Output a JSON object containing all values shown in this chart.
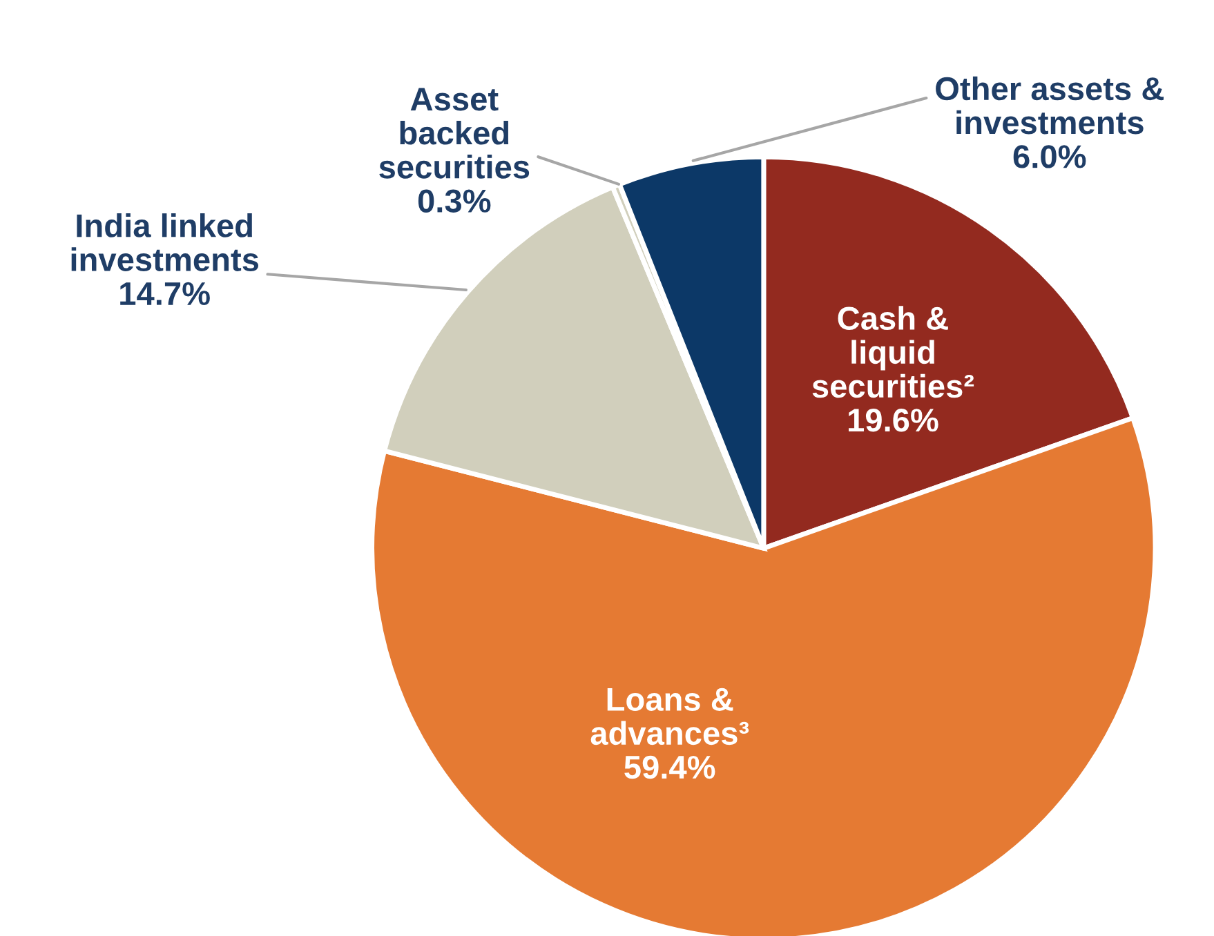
{
  "chart_data": {
    "type": "pie",
    "categories": [
      "Cash &\nliquid\nsecurities²",
      "Loans &\nadvances³",
      "India linked\ninvestments",
      "Asset\nbacked\nsecurities",
      "Other assets &\ninvestments"
    ],
    "values": [
      19.6,
      59.4,
      14.7,
      0.3,
      6.0
    ],
    "colors": [
      "#932a1f",
      "#e57a33",
      "#d1cfbc",
      "#d1cfbc",
      "#0c3867"
    ],
    "value_labels": [
      "19.6%",
      "59.4%",
      "14.7%",
      "0.3%",
      "6.0%"
    ]
  }
}
